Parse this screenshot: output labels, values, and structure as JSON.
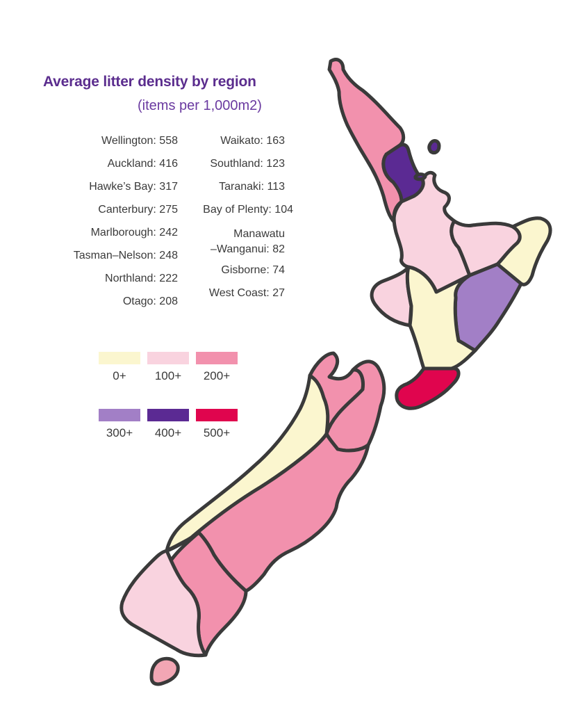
{
  "title": "Average litter density by region",
  "subtitle": "(items per 1,000m2)",
  "regions_left": [
    {
      "name": "Wellington",
      "value": 558,
      "label": "Wellington: 558"
    },
    {
      "name": "Auckland",
      "value": 416,
      "label": "Auckland: 416"
    },
    {
      "name": "Hawke's Bay",
      "value": 317,
      "label": "Hawke’s Bay: 317"
    },
    {
      "name": "Canterbury",
      "value": 275,
      "label": "Canterbury: 275"
    },
    {
      "name": "Marlborough",
      "value": 242,
      "label": "Marlborough: 242"
    },
    {
      "name": "Tasman-Nelson",
      "value": 248,
      "label": "Tasman–Nelson: 248"
    },
    {
      "name": "Northland",
      "value": 222,
      "label": "Northland: 222"
    },
    {
      "name": "Otago",
      "value": 208,
      "label": "Otago: 208"
    }
  ],
  "regions_right": [
    {
      "name": "Waikato",
      "value": 163,
      "label": "Waikato: 163"
    },
    {
      "name": "Southland",
      "value": 123,
      "label": "Southland: 123"
    },
    {
      "name": "Taranaki",
      "value": 113,
      "label": "Taranaki: 113"
    },
    {
      "name": "Bay of Plenty",
      "value": 104,
      "label": "Bay of Plenty: 104"
    },
    {
      "name": "Manawatu-Wanganui",
      "value": 82,
      "label_line1": "Manawatu",
      "label_line2": "–Wanganui: 82"
    },
    {
      "name": "Gisborne",
      "value": 74,
      "label": "Gisborne: 74"
    },
    {
      "name": "West Coast",
      "value": 27,
      "label": "West Coast: 27"
    }
  ],
  "legend": [
    {
      "label": "0+",
      "color": "#fbf6cf"
    },
    {
      "label": "100+",
      "color": "#f9d3df"
    },
    {
      "label": "200+",
      "color": "#f291ad"
    },
    {
      "label": "300+",
      "color": "#a27fc6"
    },
    {
      "label": "400+",
      "color": "#5b2a93"
    },
    {
      "label": "500+",
      "color": "#e0054e"
    }
  ],
  "colors": {
    "title": "#5b2d8e",
    "outline": "#3a3a3a",
    "stewart_island": "#f2a6b4"
  }
}
